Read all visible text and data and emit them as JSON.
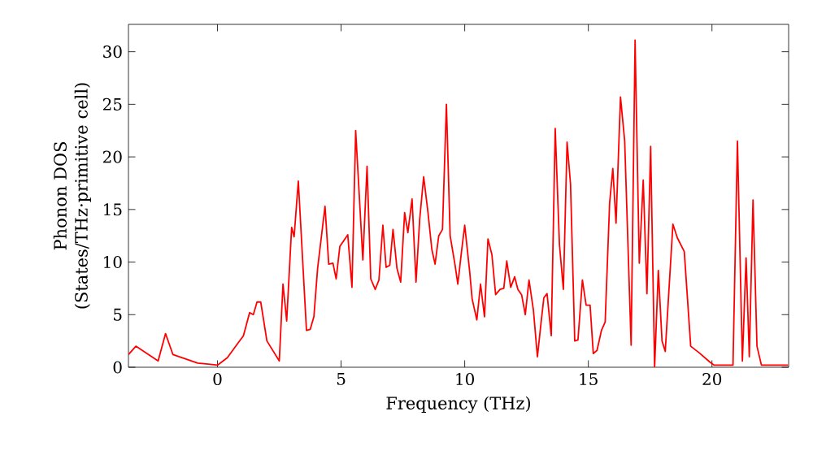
{
  "chart_data": {
    "type": "line",
    "xlabel": "Frequency (THz)",
    "ylabel": "Phonon DOS (States/THz·primitive cell)",
    "xlim": [
      -3.6,
      23.1
    ],
    "ylim": [
      0,
      32.6
    ],
    "xticks": [
      0,
      5,
      10,
      15,
      20
    ],
    "yticks": [
      0,
      5,
      10,
      15,
      20,
      25,
      30
    ],
    "grid": false,
    "marker": "none",
    "line_style": "solid",
    "x": [
      -3.6,
      -3.3,
      -2.4,
      -2.1,
      -1.8,
      -0.8,
      0.0,
      0.4,
      0.8,
      1.05,
      1.3,
      1.45,
      1.6,
      1.75,
      2.0,
      2.5,
      2.65,
      2.8,
      3.0,
      3.1,
      3.27,
      3.6,
      3.75,
      3.9,
      4.05,
      4.35,
      4.5,
      4.67,
      4.8,
      4.95,
      5.27,
      5.44,
      5.59,
      5.88,
      6.05,
      6.2,
      6.38,
      6.53,
      6.69,
      6.82,
      6.97,
      7.1,
      7.26,
      7.41,
      7.57,
      7.7,
      7.87,
      8.03,
      8.18,
      8.34,
      8.51,
      8.67,
      8.8,
      8.95,
      9.1,
      9.26,
      9.41,
      9.61,
      9.72,
      9.87,
      10.0,
      10.2,
      10.3,
      10.49,
      10.64,
      10.8,
      10.94,
      11.1,
      11.25,
      11.43,
      11.58,
      11.7,
      11.86,
      12.02,
      12.15,
      12.3,
      12.45,
      12.6,
      12.78,
      12.94,
      13.09,
      13.2,
      13.33,
      13.5,
      13.66,
      13.83,
      13.99,
      14.14,
      14.28,
      14.45,
      14.58,
      14.76,
      14.91,
      15.07,
      15.2,
      15.35,
      15.53,
      15.68,
      15.86,
      15.99,
      16.12,
      16.3,
      16.47,
      16.73,
      16.89,
      17.06,
      17.22,
      17.37,
      17.52,
      17.68,
      17.83,
      17.98,
      18.11,
      18.42,
      18.6,
      18.88,
      19.14,
      19.47,
      19.91,
      20.09,
      20.85,
      21.03,
      21.23,
      21.38,
      21.51,
      21.66,
      21.82,
      22.0,
      23.08
    ],
    "series": [
      {
        "color": "#ff0000",
        "values": [
          1.2,
          2.0,
          0.6,
          3.2,
          1.2,
          0.4,
          0.2,
          0.9,
          2.2,
          3.0,
          5.2,
          5.0,
          6.2,
          6.2,
          2.5,
          0.6,
          7.9,
          4.4,
          13.3,
          12.4,
          17.7,
          3.5,
          3.6,
          4.8,
          9.4,
          15.3,
          9.8,
          9.9,
          8.4,
          11.5,
          12.6,
          7.6,
          22.5,
          10.2,
          19.1,
          8.4,
          7.4,
          8.3,
          13.5,
          9.5,
          9.7,
          13.1,
          9.4,
          8.1,
          14.7,
          12.8,
          16.0,
          8.1,
          14.1,
          18.1,
          14.8,
          11.2,
          9.8,
          12.5,
          13.1,
          25.0,
          12.5,
          9.7,
          7.9,
          11.0,
          13.5,
          9.1,
          6.5,
          4.5,
          7.9,
          4.8,
          12.2,
          10.7,
          6.9,
          7.4,
          7.5,
          10.1,
          7.6,
          8.6,
          7.4,
          6.9,
          5.0,
          8.3,
          5.4,
          1.0,
          4.3,
          6.6,
          7.0,
          3.0,
          22.7,
          11.7,
          7.4,
          21.4,
          17.4,
          2.5,
          2.6,
          8.3,
          5.9,
          5.9,
          1.3,
          1.6,
          3.5,
          4.3,
          15.6,
          18.9,
          13.7,
          25.7,
          21.5,
          2.1,
          31.1,
          9.9,
          17.8,
          7.0,
          21.0,
          0.0,
          9.2,
          2.5,
          1.5,
          13.6,
          12.3,
          11.0,
          2.0,
          1.4,
          0.5,
          0.2,
          0.2,
          21.5,
          0.6,
          10.4,
          1.0,
          15.9,
          2.0,
          0.2,
          0.2
        ]
      }
    ]
  }
}
